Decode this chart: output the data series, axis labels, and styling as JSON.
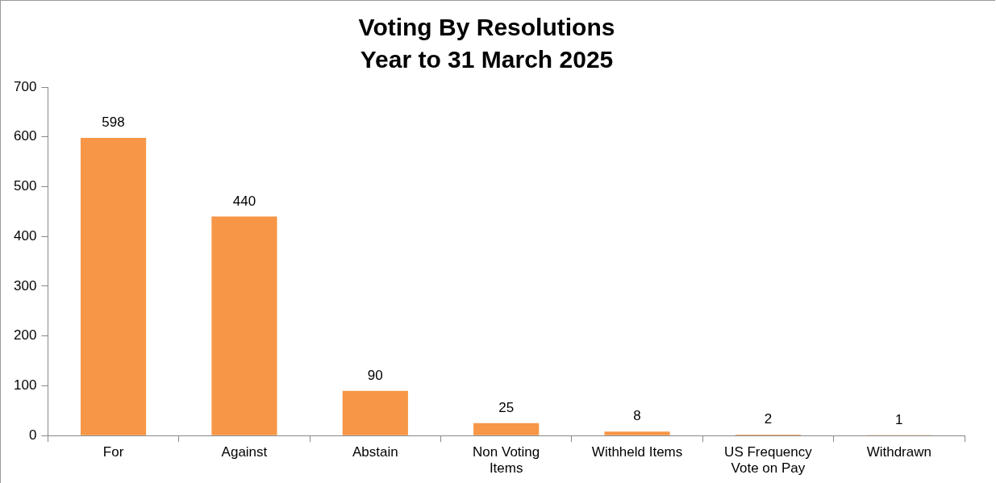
{
  "chart_data": {
    "type": "bar",
    "title": "Voting By Resolutions",
    "subtitle": "Year to 31 March 2025",
    "categories": [
      "For",
      "Against",
      "Abstain",
      "Non Voting Items",
      "Withheld Items",
      "US Frequency Vote on Pay",
      "Withdrawn"
    ],
    "values": [
      598,
      440,
      90,
      25,
      8,
      2,
      1
    ],
    "color": "#f79646",
    "ylim": [
      0,
      700
    ],
    "yticks": [
      0,
      100,
      200,
      300,
      400,
      500,
      600,
      700
    ],
    "grid": false,
    "legend": false,
    "data_labels": true
  }
}
